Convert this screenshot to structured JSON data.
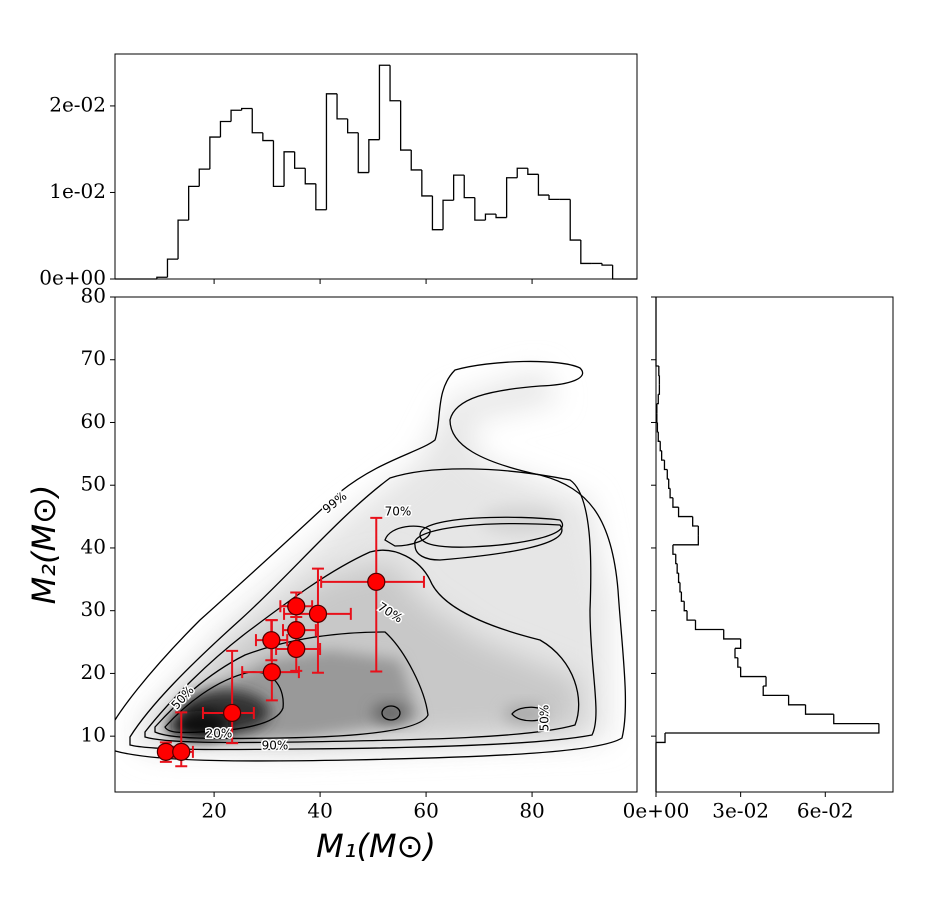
{
  "chart_data": [
    {
      "type": "histogram",
      "color": "#000000",
      "bins": [
        9.2,
        11.2,
        13.2,
        15.2,
        17.2,
        19.2,
        21.2,
        23.2,
        25.2,
        27.2,
        29.2,
        31.2,
        33.2,
        35.2,
        37.2,
        39.2,
        41.2,
        43.2,
        45.2,
        47.2,
        49.2,
        51.2,
        53.2,
        55.2,
        57.2,
        59.2,
        61.2,
        63.2,
        65.2,
        67.2,
        69.2,
        71.2,
        73.2,
        75.2,
        77.2,
        79.2,
        81.2,
        83.2,
        85.2,
        87.2,
        89.2,
        91.2,
        93.2,
        95.2
      ],
      "counts": [
        0.0002,
        0.0023,
        0.0068,
        0.0107,
        0.0127,
        0.0164,
        0.0182,
        0.0195,
        0.0197,
        0.0169,
        0.016,
        0.0107,
        0.0147,
        0.0128,
        0.011,
        0.008,
        0.0214,
        0.0185,
        0.0169,
        0.0123,
        0.0161,
        0.0247,
        0.0206,
        0.0149,
        0.0126,
        0.0096,
        0.0057,
        0.0091,
        0.012,
        0.0094,
        0.0068,
        0.0075,
        0.0071,
        0.0117,
        0.0128,
        0.0121,
        0.0097,
        0.0092,
        0.0092,
        0.0045,
        0.0018,
        0.0018,
        0.0016
      ],
      "xlim": [
        1.3,
        99.8
      ],
      "xticks": [
        20,
        40,
        60,
        80
      ],
      "ylim": [
        0,
        0.026
      ],
      "yticks": [
        {
          "value": 0,
          "label": "0e+00"
        },
        {
          "value": 0.01,
          "label": "1e-02"
        },
        {
          "value": 0.02,
          "label": "2e-02"
        }
      ]
    },
    {
      "type": "scatter",
      "color": "#ff0000",
      "error_color": "#e8101a",
      "x_label": "M₁(M⊙)",
      "y_label": "M₂(M⊙)",
      "x": [
        10.9,
        13.8,
        23.4,
        30.9,
        30.8,
        35.5,
        35.5,
        35.5,
        39.6,
        50.6
      ],
      "y": [
        7.5,
        7.5,
        13.7,
        20.2,
        25.3,
        30.7,
        26.9,
        23.9,
        29.5,
        34.6
      ],
      "xerr": [
        [
          1.1,
          1.5
        ],
        [
          1.5,
          2.2
        ],
        [
          5.5,
          4.1
        ],
        [
          5.6,
          5.1
        ],
        [
          2.9,
          3.0
        ],
        [
          3.0,
          3.0
        ],
        [
          2.5,
          3.7
        ],
        [
          3.8,
          4.5
        ],
        [
          6.4,
          6.2
        ],
        [
          10.4,
          9.0
        ]
      ],
      "yerr": [
        [
          1.6,
          1.5
        ],
        [
          2.3,
          6.3
        ],
        [
          4.8,
          9.9
        ],
        [
          4.5,
          8.3
        ],
        [
          3.2,
          3.2
        ],
        [
          3.2,
          2.2
        ],
        [
          3.0,
          3.7
        ],
        [
          3.5,
          5.1
        ],
        [
          9.4,
          7.2
        ],
        [
          14.3,
          10.2
        ]
      ],
      "contour_labels": [
        "99%",
        "70%",
        "70%",
        "50%",
        "20%",
        "90%",
        "50%"
      ],
      "xlim": [
        1.3,
        99.8
      ],
      "xticks": [
        20,
        40,
        60,
        80
      ],
      "ylim": [
        1.1,
        80
      ],
      "yticks": [
        10,
        20,
        30,
        40,
        50,
        60,
        70,
        80
      ]
    },
    {
      "type": "histogram",
      "orientation": "horizontal",
      "color": "#000000",
      "bins": [
        9,
        10.5,
        12,
        13.5,
        15,
        16.5,
        18,
        19.5,
        21,
        22.5,
        24,
        25.5,
        27,
        28.5,
        30,
        31.5,
        33,
        34.5,
        36,
        37.5,
        39,
        40.5,
        42,
        43.5,
        45,
        46.5,
        48,
        49.5,
        51,
        52.5,
        54,
        55.5,
        57,
        58.5,
        60,
        61.5,
        63,
        64.5,
        66,
        67.5,
        69
      ],
      "counts": [
        0.0032,
        0.079,
        0.063,
        0.053,
        0.047,
        0.038,
        0.039,
        0.03,
        0.029,
        0.028,
        0.03,
        0.024,
        0.014,
        0.011,
        0.01,
        0.009,
        0.0085,
        0.008,
        0.0075,
        0.007,
        0.006,
        0.015,
        0.015,
        0.013,
        0.008,
        0.006,
        0.005,
        0.0045,
        0.004,
        0.003,
        0.002,
        0.0015,
        0.0008,
        0.0005,
        0.0003,
        0.0003,
        0.0008,
        0.0012,
        0.0012,
        0.001
      ],
      "xlim": [
        0,
        0.084
      ],
      "xticks": [
        {
          "value": 0,
          "label": "0e+00"
        },
        {
          "value": 0.03,
          "label": "3e-02"
        },
        {
          "value": 0.06,
          "label": "6e-02"
        }
      ],
      "ylim": [
        1.1,
        80
      ],
      "yticks": [
        10,
        20,
        30,
        40,
        50,
        60,
        70,
        80
      ]
    }
  ]
}
